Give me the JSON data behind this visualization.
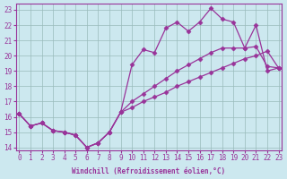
{
  "xlabel": "Windchill (Refroidissement éolien,°C)",
  "background_color": "#cce8ef",
  "line_color": "#993399",
  "grid_color": "#99bbbb",
  "xlim": [
    -0.3,
    23.3
  ],
  "ylim": [
    13.8,
    23.4
  ],
  "xticks": [
    0,
    1,
    2,
    3,
    4,
    5,
    6,
    7,
    8,
    9,
    10,
    11,
    12,
    13,
    14,
    15,
    16,
    17,
    18,
    19,
    20,
    21,
    22,
    23
  ],
  "yticks": [
    14,
    15,
    16,
    17,
    18,
    19,
    20,
    21,
    22,
    23
  ],
  "line1_x": [
    0,
    1,
    2,
    3,
    4,
    5,
    6,
    7,
    8,
    9,
    10,
    11,
    12,
    13,
    14,
    15,
    16,
    17,
    18,
    19,
    20,
    21,
    22,
    23
  ],
  "line1_y": [
    16.2,
    15.4,
    15.6,
    15.1,
    15.0,
    14.8,
    14.0,
    14.3,
    15.0,
    16.3,
    16.6,
    17.0,
    17.3,
    17.6,
    18.0,
    18.3,
    18.6,
    18.9,
    19.2,
    19.5,
    19.8,
    20.0,
    20.3,
    19.2
  ],
  "line2_x": [
    0,
    1,
    2,
    3,
    4,
    5,
    6,
    7,
    8,
    9,
    10,
    11,
    12,
    13,
    14,
    15,
    16,
    17,
    18,
    19,
    20,
    21,
    22,
    23
  ],
  "line2_y": [
    16.2,
    15.4,
    15.6,
    15.1,
    15.0,
    14.8,
    14.0,
    14.3,
    15.0,
    16.3,
    17.0,
    17.5,
    18.0,
    18.5,
    19.0,
    19.4,
    19.8,
    20.2,
    20.5,
    20.5,
    20.5,
    20.6,
    19.3,
    19.2
  ],
  "line3_x": [
    0,
    1,
    2,
    3,
    4,
    5,
    6,
    7,
    8,
    9,
    10,
    11,
    12,
    13,
    14,
    15,
    16,
    17,
    18,
    19,
    20,
    21,
    22,
    23
  ],
  "line3_y": [
    16.2,
    15.4,
    15.6,
    15.1,
    15.0,
    14.8,
    14.0,
    14.3,
    15.0,
    16.3,
    19.4,
    20.4,
    20.2,
    21.8,
    22.2,
    21.6,
    22.2,
    23.1,
    22.4,
    22.2,
    20.5,
    22.0,
    19.0,
    19.2
  ],
  "marker": "D",
  "markersize": 2.5,
  "linewidth": 0.9,
  "tick_fontsize": 5.5,
  "xlabel_fontsize": 5.5
}
